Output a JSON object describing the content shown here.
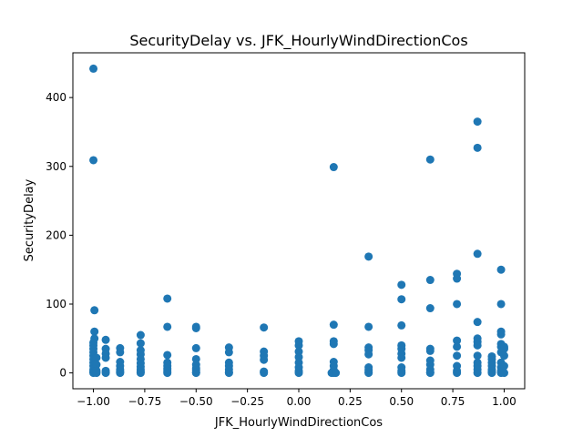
{
  "chart_data": {
    "type": "scatter",
    "title": "SecurityDelay vs. JFK_HourlyWindDirectionCos",
    "xlabel": "JFK_HourlyWindDirectionCos",
    "ylabel": "SecurityDelay",
    "xlim": [
      -1.1,
      1.1
    ],
    "ylim": [
      -23,
      465
    ],
    "xticks": [
      -1.0,
      -0.75,
      -0.5,
      -0.25,
      0.0,
      0.25,
      0.5,
      0.75,
      1.0
    ],
    "xtick_labels": [
      "−1.00",
      "−0.75",
      "−0.50",
      "−0.25",
      "0.00",
      "0.25",
      "0.50",
      "0.75",
      "1.00"
    ],
    "yticks": [
      0,
      100,
      200,
      300,
      400
    ],
    "ytick_labels": [
      "0",
      "100",
      "200",
      "300",
      "400"
    ],
    "grid": false,
    "marker_color": "#1f77b4",
    "points": [
      [
        -1.0,
        442
      ],
      [
        -1.0,
        309
      ],
      [
        -0.995,
        91
      ],
      [
        -0.995,
        60
      ],
      [
        -0.995,
        50
      ],
      [
        -1.0,
        44
      ],
      [
        -1.0,
        40
      ],
      [
        -1.0,
        35
      ],
      [
        -1.0,
        30
      ],
      [
        -1.0,
        25
      ],
      [
        -1.0,
        20
      ],
      [
        -1.0,
        15
      ],
      [
        -1.0,
        10
      ],
      [
        -1.0,
        5
      ],
      [
        -1.0,
        2
      ],
      [
        -1.0,
        0
      ],
      [
        -0.985,
        22
      ],
      [
        -0.985,
        12
      ],
      [
        -0.985,
        3
      ],
      [
        -0.985,
        0
      ],
      [
        -0.94,
        48
      ],
      [
        -0.94,
        35
      ],
      [
        -0.94,
        28
      ],
      [
        -0.94,
        22
      ],
      [
        -0.94,
        3
      ],
      [
        -0.94,
        0
      ],
      [
        -0.87,
        36
      ],
      [
        -0.87,
        30
      ],
      [
        -0.87,
        16
      ],
      [
        -0.87,
        10
      ],
      [
        -0.87,
        5
      ],
      [
        -0.87,
        2
      ],
      [
        -0.87,
        0
      ],
      [
        -0.77,
        55
      ],
      [
        -0.77,
        43
      ],
      [
        -0.77,
        33
      ],
      [
        -0.77,
        27
      ],
      [
        -0.77,
        20
      ],
      [
        -0.77,
        14
      ],
      [
        -0.77,
        9
      ],
      [
        -0.77,
        5
      ],
      [
        -0.77,
        2
      ],
      [
        -0.77,
        0
      ],
      [
        -0.64,
        108
      ],
      [
        -0.64,
        67
      ],
      [
        -0.64,
        26
      ],
      [
        -0.64,
        15
      ],
      [
        -0.64,
        10
      ],
      [
        -0.64,
        6
      ],
      [
        -0.64,
        3
      ],
      [
        -0.64,
        0
      ],
      [
        -0.5,
        67
      ],
      [
        -0.5,
        65
      ],
      [
        -0.5,
        36
      ],
      [
        -0.5,
        20
      ],
      [
        -0.5,
        12
      ],
      [
        -0.5,
        7
      ],
      [
        -0.5,
        4
      ],
      [
        -0.5,
        1
      ],
      [
        -0.5,
        0
      ],
      [
        -0.34,
        37
      ],
      [
        -0.34,
        30
      ],
      [
        -0.34,
        15
      ],
      [
        -0.34,
        10
      ],
      [
        -0.34,
        5
      ],
      [
        -0.34,
        1
      ],
      [
        -0.34,
        0
      ],
      [
        -0.17,
        66
      ],
      [
        -0.17,
        31
      ],
      [
        -0.17,
        25
      ],
      [
        -0.17,
        19
      ],
      [
        -0.17,
        2
      ],
      [
        -0.17,
        0
      ],
      [
        0.0,
        46
      ],
      [
        0.0,
        40
      ],
      [
        0.0,
        31
      ],
      [
        0.0,
        23
      ],
      [
        0.0,
        15
      ],
      [
        0.0,
        8
      ],
      [
        0.0,
        3
      ],
      [
        0.0,
        0
      ],
      [
        0.17,
        299
      ],
      [
        0.17,
        70
      ],
      [
        0.17,
        46
      ],
      [
        0.17,
        42
      ],
      [
        0.17,
        16
      ],
      [
        0.17,
        10
      ],
      [
        0.17,
        4
      ],
      [
        0.17,
        1
      ],
      [
        0.17,
        0
      ],
      [
        0.16,
        0
      ],
      [
        0.18,
        0
      ],
      [
        0.34,
        169
      ],
      [
        0.34,
        67
      ],
      [
        0.34,
        37
      ],
      [
        0.34,
        33
      ],
      [
        0.34,
        27
      ],
      [
        0.34,
        8
      ],
      [
        0.34,
        4
      ],
      [
        0.34,
        1
      ],
      [
        0.34,
        0
      ],
      [
        0.5,
        128
      ],
      [
        0.5,
        107
      ],
      [
        0.5,
        69
      ],
      [
        0.5,
        40
      ],
      [
        0.5,
        35
      ],
      [
        0.5,
        28
      ],
      [
        0.5,
        22
      ],
      [
        0.5,
        8
      ],
      [
        0.5,
        3
      ],
      [
        0.5,
        0
      ],
      [
        0.64,
        310
      ],
      [
        0.64,
        135
      ],
      [
        0.64,
        94
      ],
      [
        0.64,
        35
      ],
      [
        0.64,
        32
      ],
      [
        0.64,
        18
      ],
      [
        0.64,
        12
      ],
      [
        0.64,
        5
      ],
      [
        0.64,
        1
      ],
      [
        0.64,
        0
      ],
      [
        0.77,
        144
      ],
      [
        0.77,
        137
      ],
      [
        0.77,
        100
      ],
      [
        0.77,
        47
      ],
      [
        0.77,
        38
      ],
      [
        0.77,
        25
      ],
      [
        0.77,
        10
      ],
      [
        0.77,
        3
      ],
      [
        0.77,
        0
      ],
      [
        0.87,
        365
      ],
      [
        0.87,
        327
      ],
      [
        0.87,
        173
      ],
      [
        0.87,
        74
      ],
      [
        0.87,
        50
      ],
      [
        0.87,
        45
      ],
      [
        0.87,
        40
      ],
      [
        0.87,
        25
      ],
      [
        0.87,
        15
      ],
      [
        0.87,
        10
      ],
      [
        0.87,
        5
      ],
      [
        0.87,
        0
      ],
      [
        0.94,
        24
      ],
      [
        0.94,
        20
      ],
      [
        0.94,
        15
      ],
      [
        0.94,
        10
      ],
      [
        0.94,
        5
      ],
      [
        0.94,
        2
      ],
      [
        0.94,
        0
      ],
      [
        0.985,
        150
      ],
      [
        0.985,
        100
      ],
      [
        0.985,
        60
      ],
      [
        0.985,
        56
      ],
      [
        0.985,
        42
      ],
      [
        0.985,
        38
      ],
      [
        0.985,
        30
      ],
      [
        0.985,
        15
      ],
      [
        0.985,
        8
      ],
      [
        0.985,
        3
      ],
      [
        0.985,
        0
      ],
      [
        1.0,
        38
      ],
      [
        1.0,
        35
      ],
      [
        1.0,
        25
      ],
      [
        1.0,
        10
      ],
      [
        1.0,
        0
      ]
    ]
  }
}
